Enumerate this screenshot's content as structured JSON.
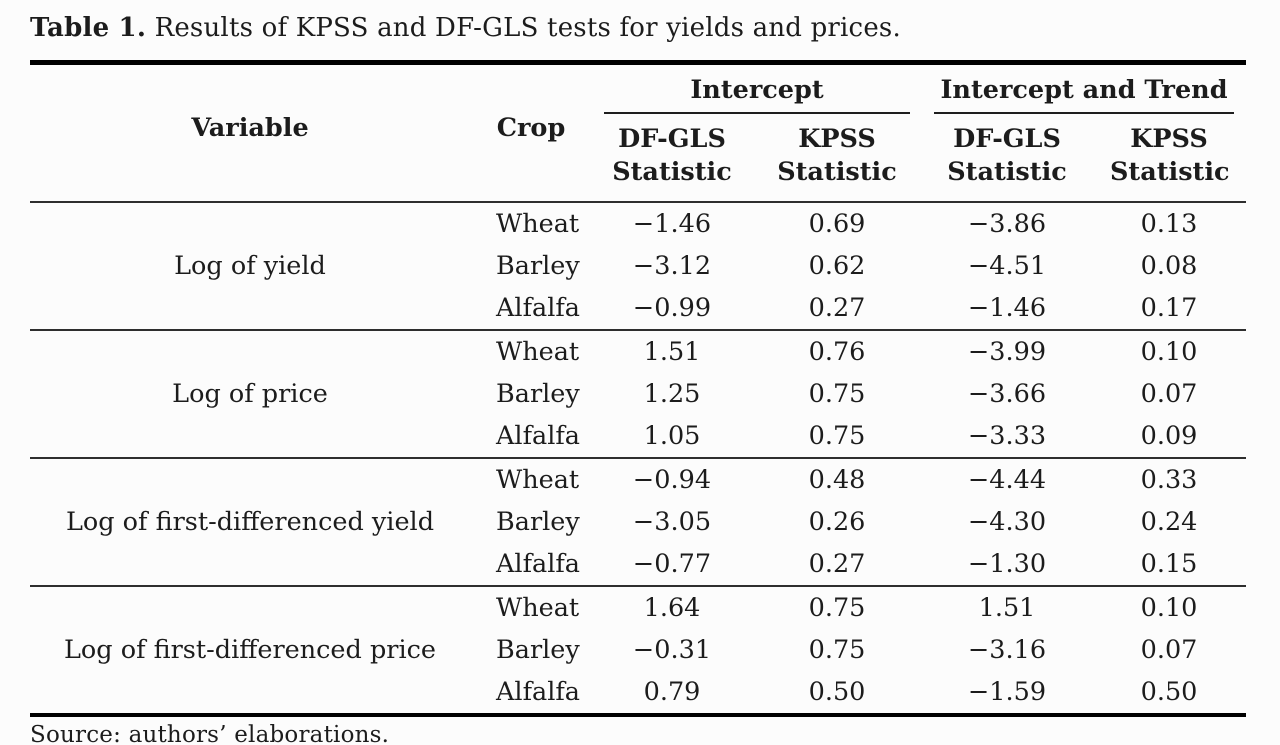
{
  "caption": {
    "label": "Table 1.",
    "text": " Results of KPSS and DF-GLS tests for yields and prices."
  },
  "table": {
    "columns": {
      "variable": "Variable",
      "crop": "Crop"
    },
    "groups": [
      {
        "label": "Intercept",
        "subcolumns": [
          "DF-GLS Statistic",
          "KPSS Statistic"
        ]
      },
      {
        "label": "Intercept and Trend",
        "subcolumns": [
          "DF-GLS Statistic",
          "KPSS Statistic"
        ]
      }
    ],
    "rows": [
      {
        "variable": "Log of yield",
        "crops": [
          {
            "crop": "Wheat",
            "values": [
              "−1.46",
              "0.69",
              "−3.86",
              "0.13"
            ]
          },
          {
            "crop": "Barley",
            "values": [
              "−3.12",
              "0.62",
              "−4.51",
              "0.08"
            ]
          },
          {
            "crop": "Alfalfa",
            "values": [
              "−0.99",
              "0.27",
              "−1.46",
              "0.17"
            ]
          }
        ]
      },
      {
        "variable": "Log of price",
        "crops": [
          {
            "crop": "Wheat",
            "values": [
              "1.51",
              "0.76",
              "−3.99",
              "0.10"
            ]
          },
          {
            "crop": "Barley",
            "values": [
              "1.25",
              "0.75",
              "−3.66",
              "0.07"
            ]
          },
          {
            "crop": "Alfalfa",
            "values": [
              "1.05",
              "0.75",
              "−3.33",
              "0.09"
            ]
          }
        ]
      },
      {
        "variable": "Log of first-differenced yield",
        "crops": [
          {
            "crop": "Wheat",
            "values": [
              "−0.94",
              "0.48",
              "−4.44",
              "0.33"
            ]
          },
          {
            "crop": "Barley",
            "values": [
              "−3.05",
              "0.26",
              "−4.30",
              "0.24"
            ]
          },
          {
            "crop": "Alfalfa",
            "values": [
              "−0.77",
              "0.27",
              "−1.30",
              "0.15"
            ]
          }
        ]
      },
      {
        "variable": "Log of first-differenced price",
        "crops": [
          {
            "crop": "Wheat",
            "values": [
              "1.64",
              "0.75",
              "1.51",
              "0.10"
            ]
          },
          {
            "crop": "Barley",
            "values": [
              "−0.31",
              "0.75",
              "−3.16",
              "0.07"
            ]
          },
          {
            "crop": "Alfalfa",
            "values": [
              "0.79",
              "0.50",
              "−1.59",
              "0.50"
            ]
          }
        ]
      }
    ]
  },
  "footer": {
    "text": "Source: authors’ elaborations."
  }
}
